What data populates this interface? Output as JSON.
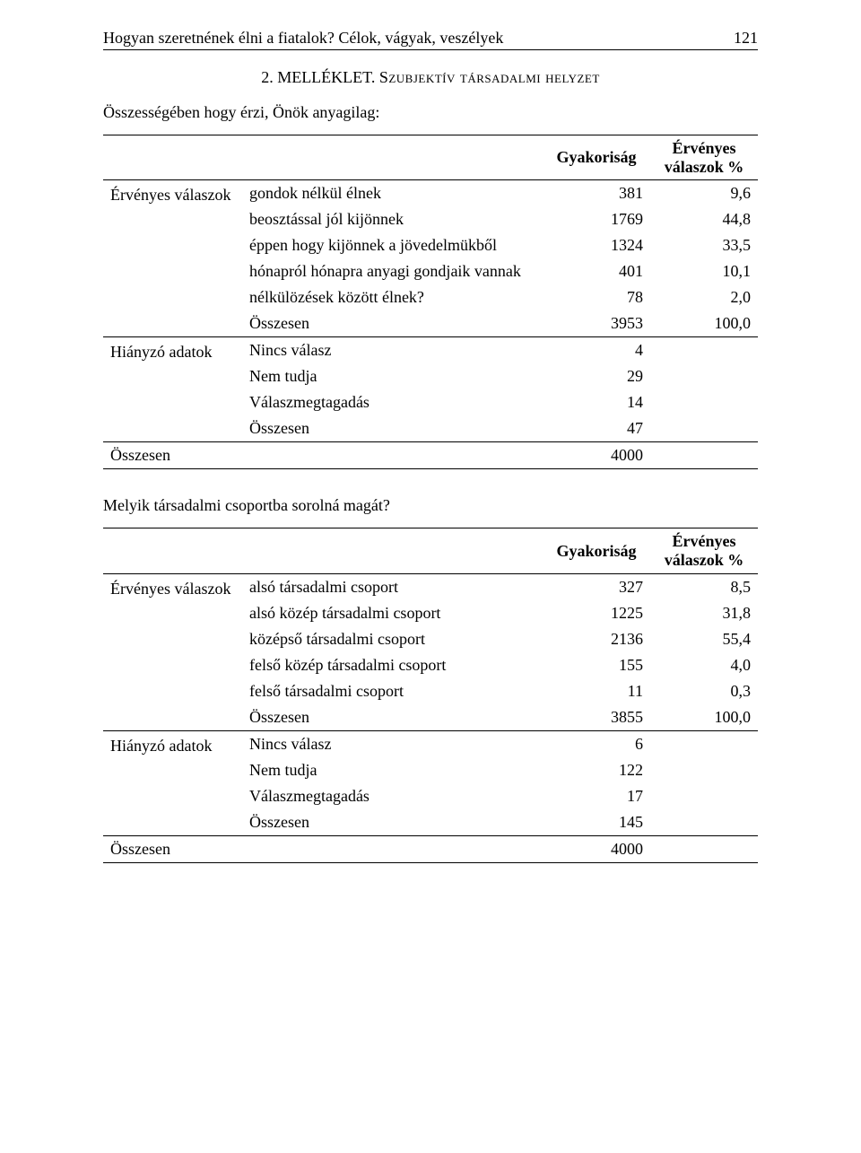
{
  "header": {
    "title": "Hogyan szeretnének élni a fiatalok? Célok, vágyak, veszélyek",
    "page_number": "121"
  },
  "section_title": {
    "prefix": "2. MELLÉKLET. ",
    "smallcaps": "Szubjektív társadalmi helyzet"
  },
  "q1": "Összességében hogy érzi, Önök anyagilag:",
  "q2": "Melyik társadalmi csoportba sorolná magát?",
  "col": {
    "freq": "Gyakoriság",
    "valid": "Érvényes",
    "valid2": "válaszok %"
  },
  "groups": {
    "valid": "Érvényes válaszok",
    "missing": "Hiányzó adatok",
    "total": "Összesen"
  },
  "t1": {
    "r1": {
      "label": "gondok nélkül élnek",
      "freq": "381",
      "pct": "9,6"
    },
    "r2": {
      "label": "beosztással jól kijönnek",
      "freq": "1769",
      "pct": "44,8"
    },
    "r3": {
      "label": "éppen hogy kijönnek a jövedelmükből",
      "freq": "1324",
      "pct": "33,5"
    },
    "r4": {
      "label": "hónapról hónapra anyagi gondjaik vannak",
      "freq": "401",
      "pct": "10,1"
    },
    "r5": {
      "label": "nélkülözések között élnek?",
      "freq": "78",
      "pct": "2,0"
    },
    "r6": {
      "label": "Összesen",
      "freq": "3953",
      "pct": "100,0"
    },
    "m1": {
      "label": "Nincs válasz",
      "freq": "4"
    },
    "m2": {
      "label": "Nem tudja",
      "freq": "29"
    },
    "m3": {
      "label": "Válaszmegtagadás",
      "freq": "14"
    },
    "m4": {
      "label": "Összesen",
      "freq": "47"
    },
    "total": {
      "freq": "4000"
    }
  },
  "t2": {
    "r1": {
      "label": "alsó társadalmi csoport",
      "freq": "327",
      "pct": "8,5"
    },
    "r2": {
      "label": "alsó közép társadalmi csoport",
      "freq": "1225",
      "pct": "31,8"
    },
    "r3": {
      "label": "középső társadalmi csoport",
      "freq": "2136",
      "pct": "55,4"
    },
    "r4": {
      "label": "felső közép társadalmi csoport",
      "freq": "155",
      "pct": "4,0"
    },
    "r5": {
      "label": "felső társadalmi csoport",
      "freq": "11",
      "pct": "0,3"
    },
    "r6": {
      "label": "Összesen",
      "freq": "3855",
      "pct": "100,0"
    },
    "m1": {
      "label": "Nincs válasz",
      "freq": "6"
    },
    "m2": {
      "label": "Nem tudja",
      "freq": "122"
    },
    "m3": {
      "label": "Válaszmegtagadás",
      "freq": "17"
    },
    "m4": {
      "label": "Összesen",
      "freq": "145"
    },
    "total": {
      "freq": "4000"
    }
  }
}
